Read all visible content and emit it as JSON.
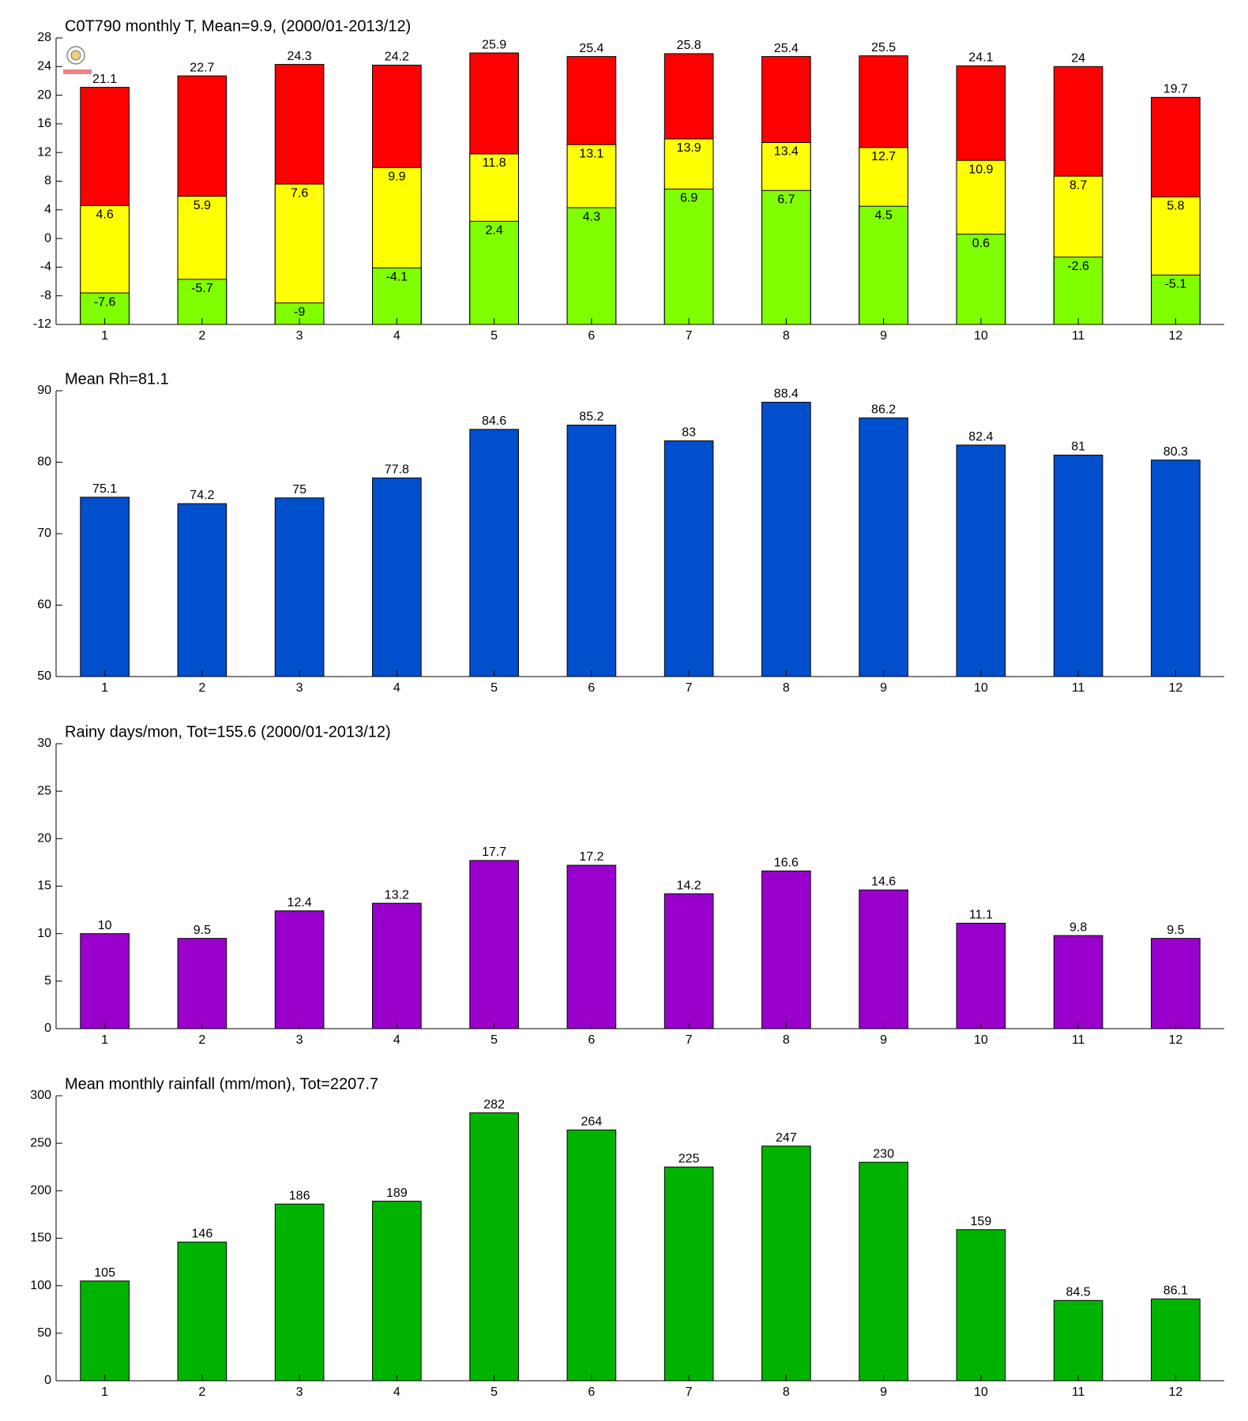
{
  "chart_data": [
    {
      "type": "bar",
      "title": "C0T790 monthly T, Mean=9.9, (2000/01-2013/12)",
      "categories": [
        "1",
        "2",
        "3",
        "4",
        "5",
        "6",
        "7",
        "8",
        "9",
        "10",
        "11",
        "12"
      ],
      "series": [
        {
          "color": "#ff0000",
          "values": [
            21.1,
            22.7,
            24.3,
            24.2,
            25.9,
            25.4,
            25.8,
            25.4,
            25.5,
            24.1,
            24,
            19.7
          ]
        },
        {
          "color": "#ffff00",
          "values": [
            4.6,
            5.9,
            7.6,
            9.9,
            11.8,
            13.1,
            13.9,
            13.4,
            12.7,
            10.9,
            8.7,
            5.8
          ]
        },
        {
          "color": "#80ff00",
          "values": [
            -7.6,
            -5.7,
            -9,
            -4.1,
            2.4,
            4.3,
            6.9,
            6.7,
            4.5,
            0.6,
            -2.6,
            -5.1
          ]
        }
      ],
      "ylim": [
        -12,
        28
      ],
      "yticks": [
        -12,
        -8,
        -4,
        0,
        4,
        8,
        12,
        16,
        20,
        24,
        28
      ]
    },
    {
      "type": "bar",
      "title": "Mean Rh=81.1",
      "categories": [
        "1",
        "2",
        "3",
        "4",
        "5",
        "6",
        "7",
        "8",
        "9",
        "10",
        "11",
        "12"
      ],
      "series": [
        {
          "color": "#004fcc",
          "values": [
            75.1,
            74.2,
            75,
            77.8,
            84.6,
            85.2,
            83,
            88.4,
            86.2,
            82.4,
            81,
            80.3
          ]
        }
      ],
      "ylim": [
        50,
        90
      ],
      "yticks": [
        50,
        60,
        70,
        80,
        90
      ]
    },
    {
      "type": "bar",
      "title": "Rainy days/mon, Tot=155.6 (2000/01-2013/12)",
      "categories": [
        "1",
        "2",
        "3",
        "4",
        "5",
        "6",
        "7",
        "8",
        "9",
        "10",
        "11",
        "12"
      ],
      "series": [
        {
          "color": "#9900cc",
          "values": [
            10,
            9.5,
            12.4,
            13.2,
            17.7,
            17.2,
            14.2,
            16.6,
            14.6,
            11.1,
            9.8,
            9.5
          ]
        }
      ],
      "ylim": [
        0,
        30
      ],
      "yticks": [
        0,
        5,
        10,
        15,
        20,
        25,
        30
      ]
    },
    {
      "type": "bar",
      "title": "Mean monthly rainfall (mm/mon), Tot=2207.7",
      "categories": [
        "1",
        "2",
        "3",
        "4",
        "5",
        "6",
        "7",
        "8",
        "9",
        "10",
        "11",
        "12"
      ],
      "series": [
        {
          "color": "#00b300",
          "values": [
            105,
            146,
            186,
            189,
            282,
            264,
            225,
            247,
            230,
            159,
            84.5,
            86.1
          ]
        }
      ],
      "ylim": [
        0,
        300
      ],
      "yticks": [
        0,
        50,
        100,
        150,
        200,
        250,
        300
      ]
    }
  ]
}
